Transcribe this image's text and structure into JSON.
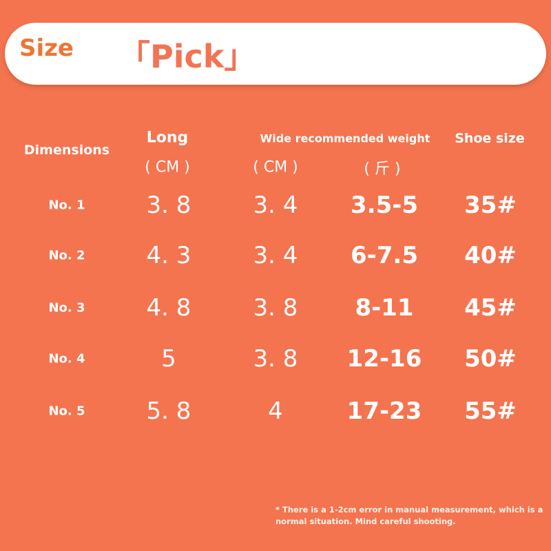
{
  "banner": {
    "size_label": "Size",
    "pick_label": "「Pick」"
  },
  "colors": {
    "background": "#f3744f",
    "size_text": "#ee7536",
    "pick_text": "#f27453"
  },
  "headers": {
    "dimensions": "Dimensions",
    "long": "Long",
    "long_unit": "( CM )",
    "wide_weight": "Wide recommended weight",
    "wide_unit": "( CM )",
    "weight_unit": "( 斤 )",
    "shoe_size": "Shoe size"
  },
  "rows": [
    {
      "label": "No. 1",
      "long": "3. 8",
      "wide": "3. 4",
      "weight": "3.5-5",
      "shoe": "35#"
    },
    {
      "label": "No. 2",
      "long": "4. 3",
      "wide": "3. 4",
      "weight": "6-7.5",
      "shoe": "40#"
    },
    {
      "label": "No. 3",
      "long": "4. 8",
      "wide": "3. 8",
      "weight": "8-11",
      "shoe": "45#"
    },
    {
      "label": "No. 4",
      "long": "5",
      "wide": "3. 8",
      "weight": "12-16",
      "shoe": "50#"
    },
    {
      "label": "No. 5",
      "long": "5. 8",
      "wide": "4",
      "weight": "17-23",
      "shoe": "55#"
    }
  ],
  "footnote": "* There is a 1-2cm error in manual measurement, which is a normal situation. Mind careful shooting."
}
